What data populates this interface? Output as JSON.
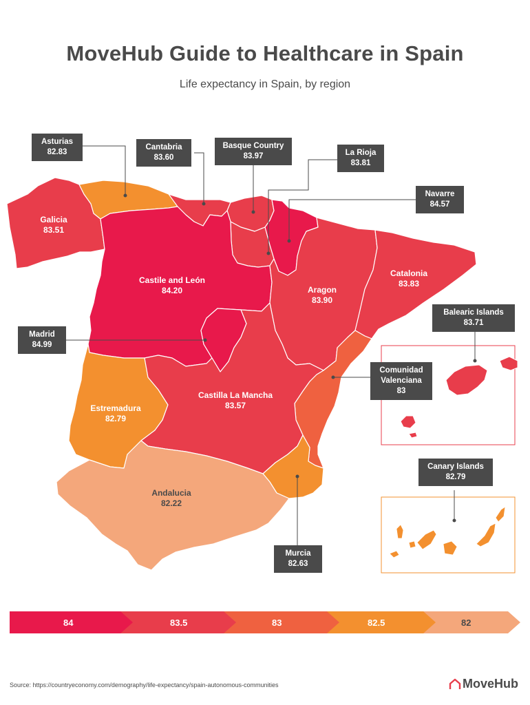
{
  "title": "MoveHub Guide to Healthcare in Spain",
  "subtitle": "Life expectancy in Spain, by region",
  "colors": {
    "c84": "#e8194b",
    "c835": "#e83d4b",
    "c83": "#ef6140",
    "c825": "#f3902f",
    "c82": "#f4a77b",
    "label_bg": "#4a4a4a"
  },
  "regions": {
    "asturias": {
      "name": "Asturias",
      "value": "82.83"
    },
    "cantabria": {
      "name": "Cantabria",
      "value": "83.60"
    },
    "basque": {
      "name": "Basque Country",
      "value": "83.97"
    },
    "rioja": {
      "name": "La Rioja",
      "value": "83.81"
    },
    "navarre": {
      "name": "Navarre",
      "value": "84.57"
    },
    "galicia": {
      "name": "Galicia",
      "value": "83.51"
    },
    "castile_leon": {
      "name": "Castile and León",
      "value": "84.20"
    },
    "aragon": {
      "name": "Aragon",
      "value": "83.90"
    },
    "catalonia": {
      "name": "Catalonia",
      "value": "83.83"
    },
    "balearic": {
      "name": "Balearic Islands",
      "value": "83.71"
    },
    "madrid": {
      "name": "Madrid",
      "value": "84.99"
    },
    "valencia": {
      "name_line1": "Comunidad",
      "name_line2": "Valenciana",
      "value": "83"
    },
    "estremadura": {
      "name": "Estremadura",
      "value": "82.79"
    },
    "castilla_mancha": {
      "name": "Castilla La Mancha",
      "value": "83.57"
    },
    "andalucia": {
      "name": "Andalucia",
      "value": "82.22"
    },
    "murcia": {
      "name": "Murcia",
      "value": "82.63"
    },
    "canary": {
      "name": "Canary Islands",
      "value": "82.79"
    }
  },
  "legend": [
    "84",
    "83.5",
    "83",
    "82.5",
    "82"
  ],
  "source": "Source: https://countryeconomy.com/demography/life-expectancy/spain-autonomous-communities",
  "brand": "MoveHub"
}
